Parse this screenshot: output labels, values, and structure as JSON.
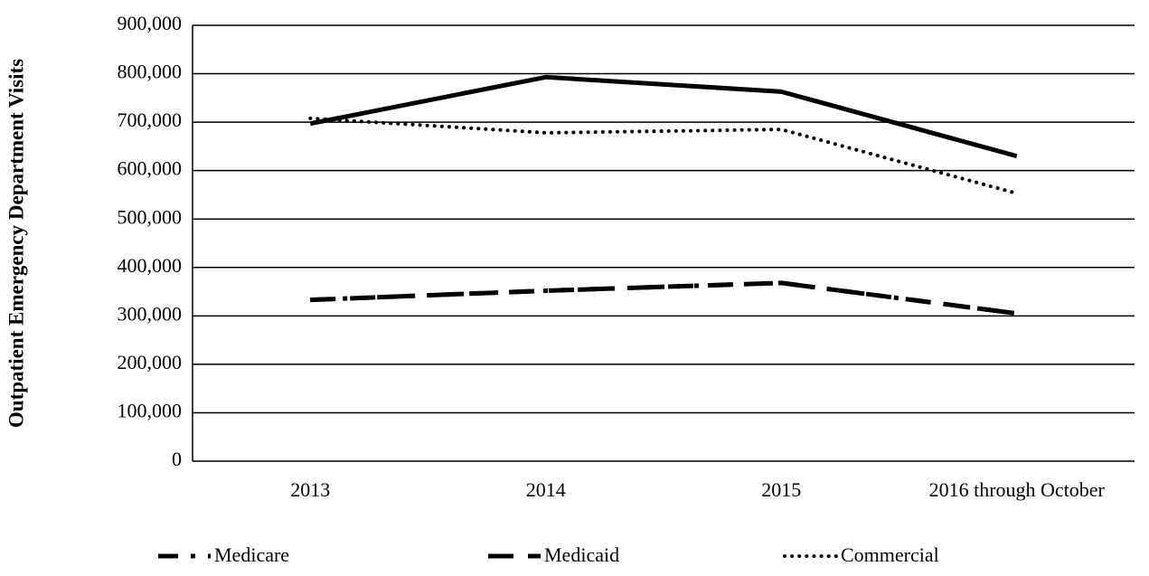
{
  "chart_data": {
    "type": "line",
    "y_axis_label": "Outpatient Emergency Department Visits",
    "categories": [
      "2013",
      "2014",
      "2015",
      "2016 through October"
    ],
    "series": [
      {
        "color": "#000000",
        "dash": "solid",
        "values": [
          697000,
          793000,
          763000,
          630000
        ]
      },
      {
        "name": "Medicare",
        "color": "#000000",
        "dash": "dash-dot-dot",
        "values": [
          333000,
          352000,
          368000,
          305000
        ]
      },
      {
        "name": "Medicaid",
        "color": "#000000",
        "dash": "long-dash",
        "values": [
          333000,
          352000,
          368000,
          305000
        ]
      },
      {
        "name": "Commercial",
        "color": "#000000",
        "dash": "dot",
        "values": [
          708000,
          678000,
          685000,
          553000
        ]
      }
    ],
    "ylim": [
      0,
      900000
    ],
    "yticks": [
      0,
      {
        "value": 100000,
        "label": "100,000"
      },
      {
        "value": 200000,
        "label": "200,000"
      },
      {
        "value": 300000,
        "label": "300,000"
      },
      {
        "value": 400000,
        "label": "400,000"
      },
      {
        "value": 500000,
        "label": "500,000"
      },
      {
        "value": 600000,
        "label": "600,000"
      },
      {
        "value": 700000,
        "label": "700,000"
      },
      {
        "value": 800000,
        "label": "800,000"
      },
      {
        "value": 900000,
        "label": "900,000"
      }
    ],
    "grid": true,
    "legend": "bottom"
  }
}
